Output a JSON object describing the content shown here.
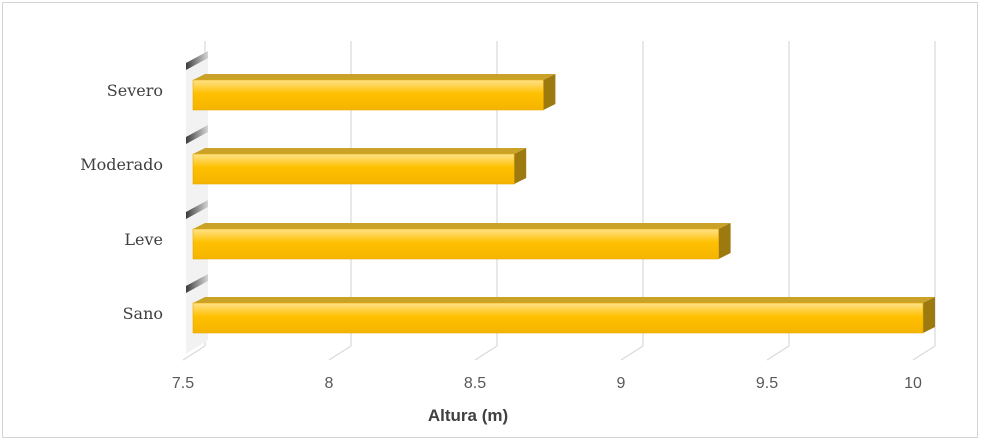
{
  "chart_data": {
    "type": "bar",
    "orientation": "horizontal",
    "style": "3d",
    "categories": [
      "Sano",
      "Leve",
      "Moderado",
      "Severo"
    ],
    "values": [
      10.0,
      9.3,
      8.6,
      8.7
    ],
    "xlabel": "Altura (m)",
    "ylabel": "",
    "xlim": [
      7.5,
      10
    ],
    "xticks": [
      "7.5",
      "8",
      "8.5",
      "9",
      "9.5",
      "10"
    ],
    "grid": true,
    "legend": "none",
    "bar_color": "#FFC000",
    "bar_top_color": "#C9A227",
    "bar_side_color": "#9C7A10",
    "gridline_color": "#d9d9d9"
  }
}
